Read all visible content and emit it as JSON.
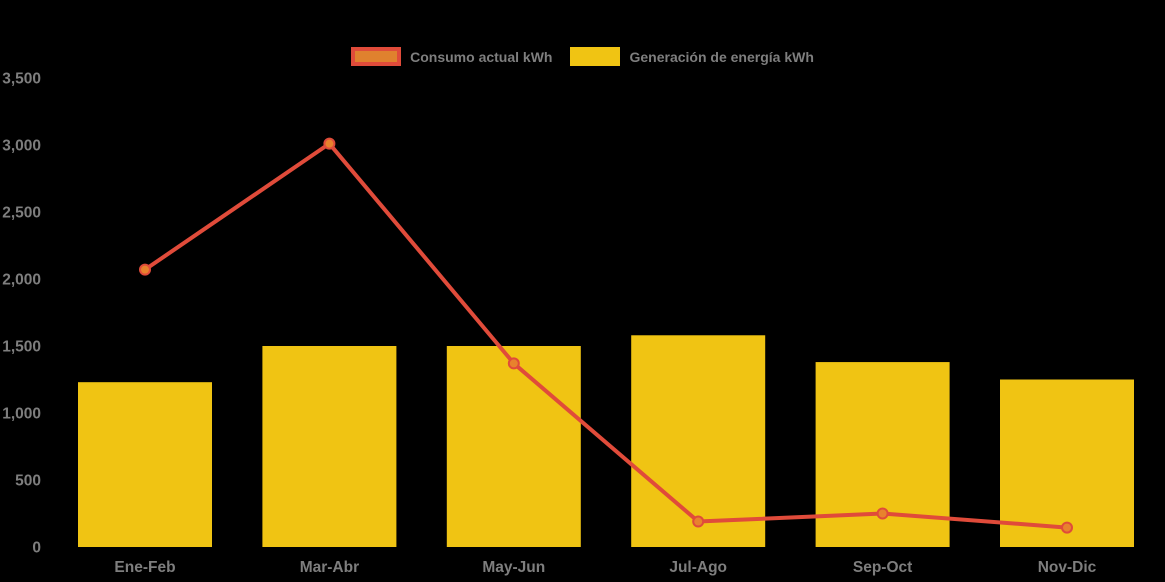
{
  "app": {
    "background": "#000000",
    "text_color": "#7e7e7e"
  },
  "legend": {
    "items": [
      {
        "label": "Consumo actual kWh",
        "swatch_fill": "#e0812e",
        "swatch_border": "#e04b3a",
        "series": "line"
      },
      {
        "label": "Generación de energía kWh",
        "swatch_fill": "#f0c413",
        "swatch_border": "#f0c413",
        "series": "bar"
      }
    ]
  },
  "chart_data": {
    "type": "bar+line",
    "categories": [
      "Ene-Feb",
      "Mar-Abr",
      "May-Jun",
      "Jul-Ago",
      "Sep-Oct",
      "Nov-Dic"
    ],
    "series": [
      {
        "name": "Generación de energía kWh",
        "type": "bar",
        "color": "#f0c413",
        "values": [
          1230,
          1500,
          1500,
          1580,
          1380,
          1250
        ]
      },
      {
        "name": "Consumo actual kWh",
        "type": "line",
        "color": "#e04b3a",
        "marker_fill": "#e8822d",
        "marker_stroke": "#e04b3a",
        "values": [
          2070,
          3010,
          1370,
          190,
          250,
          145
        ]
      }
    ],
    "title": "",
    "xlabel": "",
    "ylabel": "",
    "ylim": [
      0,
      3500
    ],
    "yticks": [
      0,
      500,
      1000,
      1500,
      2000,
      2500,
      3000,
      3500
    ],
    "ytick_labels": [
      "0",
      "500",
      "1,000",
      "1,500",
      "2,000",
      "2,500",
      "3,000",
      "3,500"
    ],
    "grid": false,
    "legend_position": "top",
    "background": "#000000",
    "axis_text_color": "#7e7e7e"
  }
}
